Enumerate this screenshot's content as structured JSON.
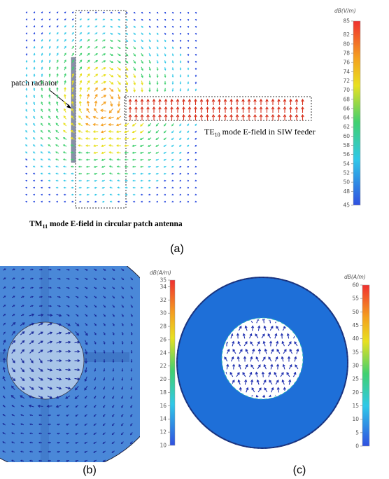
{
  "panel_a": {
    "annotations": {
      "patch_radiator": "patch radiator",
      "feeder": {
        "main": "TE",
        "sub": "10",
        "rest": " mode E-field in SIW feeder"
      },
      "patch_mode": {
        "main": "TM",
        "sub": "11",
        "rest": " mode E-field in circular patch antenna"
      }
    },
    "colorbar": {
      "unit": "dB(V/m)",
      "ticks": [
        85,
        82,
        80,
        78,
        76,
        74,
        72,
        70,
        68,
        66,
        64,
        62,
        60,
        58,
        56,
        54,
        52,
        50,
        48,
        45
      ]
    },
    "label": "(a)"
  },
  "panel_b": {
    "colorbar": {
      "unit": "dB(A/m)",
      "ticks": [
        35,
        34,
        32,
        30,
        28,
        26,
        24,
        22,
        20,
        18,
        16,
        14,
        12,
        10
      ]
    },
    "label": "(b)"
  },
  "panel_c": {
    "colorbar": {
      "unit": "dB(A/m)",
      "ticks": [
        60,
        55,
        50,
        45,
        40,
        35,
        30,
        25,
        20,
        15,
        10,
        5,
        0
      ]
    },
    "label": "(c)"
  }
}
